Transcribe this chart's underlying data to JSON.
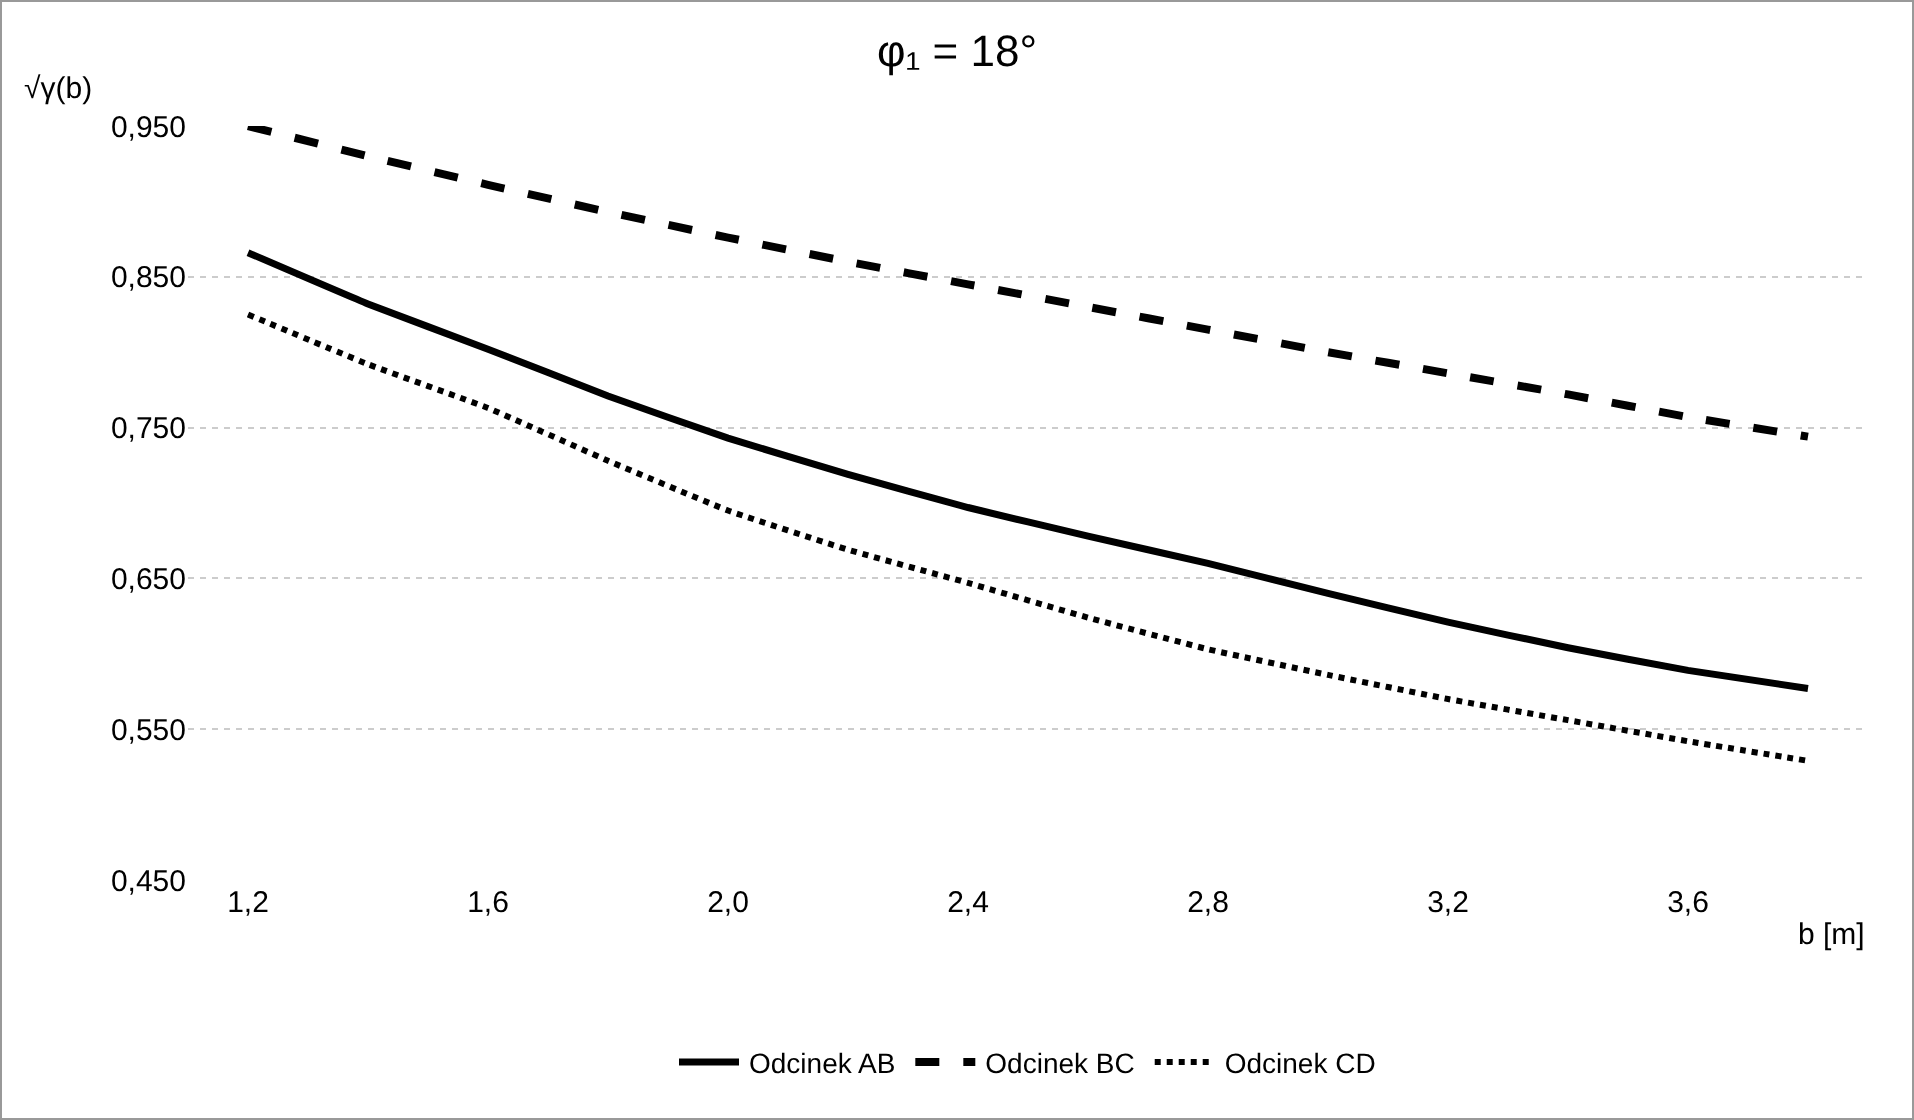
{
  "chart_data": {
    "type": "line",
    "title": "φ₁ = 18°",
    "xlabel": "b [m]",
    "ylabel": "√γ(b)",
    "x": [
      1.2,
      1.4,
      1.6,
      1.8,
      2.0,
      2.2,
      2.4,
      2.6,
      2.8,
      3.0,
      3.2,
      3.4,
      3.6,
      3.8
    ],
    "series": [
      {
        "name": "Odcinek AB",
        "color": "#000000",
        "line_style": "solid",
        "values": [
          0.866,
          0.832,
          0.802,
          0.771,
          0.743,
          0.719,
          0.697,
          0.678,
          0.66,
          0.64,
          0.621,
          0.604,
          0.589,
          0.577
        ]
      },
      {
        "name": "Odcinek BC",
        "color": "#000000",
        "line_style": "dashed",
        "values": [
          0.95,
          0.93,
          0.911,
          0.893,
          0.876,
          0.86,
          0.845,
          0.83,
          0.815,
          0.8,
          0.786,
          0.772,
          0.757,
          0.744
        ]
      },
      {
        "name": "Odcinek CD",
        "color": "#000000",
        "line_style": "dotted",
        "values": [
          0.825,
          0.792,
          0.763,
          0.728,
          0.695,
          0.669,
          0.647,
          0.624,
          0.603,
          0.586,
          0.57,
          0.556,
          0.542,
          0.529
        ]
      }
    ],
    "xlim": [
      1.1,
      3.9
    ],
    "xticks": [
      {
        "value": 1.2,
        "label": "1,2"
      },
      {
        "value": 1.6,
        "label": "1,6"
      },
      {
        "value": 2.0,
        "label": "2,0"
      },
      {
        "value": 2.4,
        "label": "2,4"
      },
      {
        "value": 2.8,
        "label": "2,8"
      },
      {
        "value": 3.2,
        "label": "3,2"
      },
      {
        "value": 3.6,
        "label": "3,6"
      }
    ],
    "ylim": [
      0.45,
      0.95
    ],
    "yticks": [
      {
        "value": 0.45,
        "label": "0,450"
      },
      {
        "value": 0.55,
        "label": "0,550"
      },
      {
        "value": 0.65,
        "label": "0,650"
      },
      {
        "value": 0.75,
        "label": "0,750"
      },
      {
        "value": 0.85,
        "label": "0,850"
      },
      {
        "value": 0.95,
        "label": "0,950"
      }
    ],
    "grid": "y",
    "legend": "bottom",
    "marker": "none"
  }
}
